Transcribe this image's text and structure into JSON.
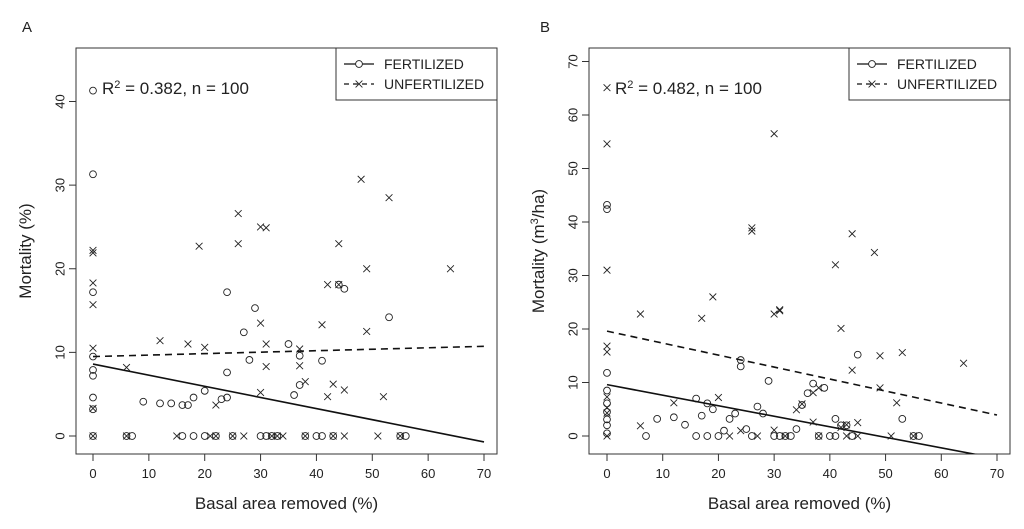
{
  "chart_data": [
    {
      "panel_label": "A",
      "type": "scatter",
      "xlabel": "Basal area removed (%)",
      "ylabel": "Mortality (%)",
      "ylabel_sup": "",
      "ylabel_suffix": "",
      "xlim": [
        0,
        70
      ],
      "ylim": [
        0,
        40
      ],
      "xticks": [
        0,
        10,
        20,
        30,
        40,
        50,
        60,
        70
      ],
      "yticks": [
        0,
        10,
        20,
        30,
        40
      ],
      "grid": false,
      "legend_position": "top-right",
      "annotation": {
        "lead": "R",
        "sup": "2",
        "rest": " = 0.382, n = 100"
      },
      "series": [
        {
          "name": "FERTILIZED",
          "marker": "circle",
          "line_style": "solid",
          "fit": {
            "intercept": 8.6,
            "slope": -0.133
          },
          "points": [
            [
              0,
              41.3
            ],
            [
              0,
              31.3
            ],
            [
              0,
              17.2
            ],
            [
              0,
              9.5
            ],
            [
              0,
              7.9
            ],
            [
              0,
              7.2
            ],
            [
              0,
              4.6
            ],
            [
              0,
              3.2
            ],
            [
              0,
              0
            ],
            [
              6,
              0
            ],
            [
              7,
              0
            ],
            [
              9,
              4.1
            ],
            [
              12,
              3.9
            ],
            [
              14,
              3.9
            ],
            [
              16,
              3.7
            ],
            [
              16,
              0
            ],
            [
              17,
              3.7
            ],
            [
              18,
              0
            ],
            [
              18,
              4.6
            ],
            [
              20,
              5.4
            ],
            [
              20,
              0
            ],
            [
              22,
              0
            ],
            [
              23,
              4.4
            ],
            [
              24,
              17.2
            ],
            [
              24,
              7.6
            ],
            [
              24,
              4.6
            ],
            [
              25,
              0
            ],
            [
              27,
              12.4
            ],
            [
              28,
              9.1
            ],
            [
              29,
              15.3
            ],
            [
              30,
              0
            ],
            [
              31,
              0
            ],
            [
              32,
              0
            ],
            [
              33,
              0
            ],
            [
              35,
              11.0
            ],
            [
              36,
              4.9
            ],
            [
              37,
              6.1
            ],
            [
              37,
              9.6
            ],
            [
              38,
              0
            ],
            [
              40,
              0
            ],
            [
              41,
              9.0
            ],
            [
              41,
              0
            ],
            [
              43,
              0
            ],
            [
              44,
              18.1
            ],
            [
              45,
              17.6
            ],
            [
              53,
              14.2
            ],
            [
              55,
              0
            ],
            [
              56,
              0
            ]
          ]
        },
        {
          "name": "UNFERTILIZED",
          "marker": "x",
          "line_style": "dashed",
          "fit": {
            "intercept": 9.5,
            "slope": 0.0175
          },
          "points": [
            [
              0,
              22.2
            ],
            [
              0,
              21.9
            ],
            [
              0,
              18.3
            ],
            [
              0,
              15.7
            ],
            [
              0,
              10.5
            ],
            [
              0,
              3.3
            ],
            [
              0,
              0
            ],
            [
              6,
              8.2
            ],
            [
              6,
              0
            ],
            [
              12,
              11.4
            ],
            [
              15,
              0
            ],
            [
              17,
              11.0
            ],
            [
              19,
              22.7
            ],
            [
              20,
              10.6
            ],
            [
              21,
              0
            ],
            [
              22,
              3.7
            ],
            [
              22,
              0
            ],
            [
              25,
              0
            ],
            [
              26,
              26.6
            ],
            [
              26,
              23.0
            ],
            [
              27,
              0
            ],
            [
              30,
              25.0
            ],
            [
              30,
              13.5
            ],
            [
              30,
              5.2
            ],
            [
              31,
              24.9
            ],
            [
              31,
              11.0
            ],
            [
              31,
              8.3
            ],
            [
              32,
              0
            ],
            [
              33,
              0
            ],
            [
              34,
              0
            ],
            [
              37,
              10.4
            ],
            [
              37,
              8.4
            ],
            [
              38,
              6.5
            ],
            [
              38,
              0
            ],
            [
              41,
              13.3
            ],
            [
              42,
              18.1
            ],
            [
              42,
              4.7
            ],
            [
              43,
              6.2
            ],
            [
              43,
              0
            ],
            [
              44,
              23.0
            ],
            [
              44,
              18.1
            ],
            [
              45,
              5.5
            ],
            [
              45,
              0
            ],
            [
              48,
              30.7
            ],
            [
              49,
              20.0
            ],
            [
              49,
              12.5
            ],
            [
              51,
              0
            ],
            [
              52,
              4.7
            ],
            [
              53,
              28.5
            ],
            [
              55,
              0
            ],
            [
              64,
              20.0
            ]
          ]
        }
      ]
    },
    {
      "panel_label": "B",
      "type": "scatter",
      "xlabel": "Basal area removed (%)",
      "ylabel": "Mortality (m",
      "ylabel_sup": "3",
      "ylabel_suffix": "/ha)",
      "xlim": [
        0,
        70
      ],
      "ylim": [
        0,
        70
      ],
      "xticks": [
        0,
        10,
        20,
        30,
        40,
        50,
        60,
        70
      ],
      "yticks": [
        0,
        10,
        20,
        30,
        40,
        50,
        60,
        70
      ],
      "grid": false,
      "legend_position": "top-right",
      "annotation": {
        "lead": "R",
        "sup": "2",
        "rest": " = 0.482, n = 100"
      },
      "series": [
        {
          "name": "FERTILIZED",
          "marker": "circle",
          "line_style": "solid",
          "fit": {
            "intercept": 9.6,
            "slope": -0.197
          },
          "points": [
            [
              0,
              43.2
            ],
            [
              0,
              42.4
            ],
            [
              0,
              11.8
            ],
            [
              0,
              8.5
            ],
            [
              0,
              6.1
            ],
            [
              0,
              4.5
            ],
            [
              0,
              3.1
            ],
            [
              0,
              2.0
            ],
            [
              0,
              0.5
            ],
            [
              7,
              0
            ],
            [
              9,
              3.2
            ],
            [
              12,
              3.5
            ],
            [
              14,
              2.1
            ],
            [
              16,
              7.0
            ],
            [
              16,
              0
            ],
            [
              17,
              3.8
            ],
            [
              18,
              0
            ],
            [
              18,
              6.1
            ],
            [
              19,
              5.0
            ],
            [
              20,
              0
            ],
            [
              21,
              1.0
            ],
            [
              22,
              3.2
            ],
            [
              23,
              4.2
            ],
            [
              24,
              14.2
            ],
            [
              24,
              13.0
            ],
            [
              25,
              1.3
            ],
            [
              26,
              0
            ],
            [
              27,
              5.5
            ],
            [
              28,
              4.2
            ],
            [
              29,
              10.3
            ],
            [
              30,
              0
            ],
            [
              31,
              0
            ],
            [
              32,
              0
            ],
            [
              33,
              0
            ],
            [
              34,
              1.3
            ],
            [
              35,
              5.8
            ],
            [
              36,
              8.0
            ],
            [
              37,
              9.8
            ],
            [
              38,
              0
            ],
            [
              39,
              9.0
            ],
            [
              40,
              0
            ],
            [
              41,
              0
            ],
            [
              41,
              3.2
            ],
            [
              42,
              2.0
            ],
            [
              43,
              2.0
            ],
            [
              44,
              0
            ],
            [
              45,
              15.2
            ],
            [
              53,
              3.2
            ],
            [
              55,
              0
            ],
            [
              56,
              0
            ]
          ]
        },
        {
          "name": "UNFERTILIZED",
          "marker": "x",
          "line_style": "dashed",
          "fit": {
            "intercept": 19.6,
            "slope": -0.224
          },
          "points": [
            [
              0,
              65.1
            ],
            [
              0,
              54.6
            ],
            [
              0,
              31.0
            ],
            [
              0,
              16.8
            ],
            [
              0,
              15.7
            ],
            [
              0,
              7.3
            ],
            [
              0,
              5.3
            ],
            [
              0,
              4.3
            ],
            [
              0,
              0
            ],
            [
              6,
              22.8
            ],
            [
              6,
              1.9
            ],
            [
              12,
              6.2
            ],
            [
              17,
              22.0
            ],
            [
              19,
              26.0
            ],
            [
              20,
              7.2
            ],
            [
              22,
              0
            ],
            [
              24,
              1.0
            ],
            [
              26,
              38.9
            ],
            [
              26,
              38.3
            ],
            [
              27,
              0
            ],
            [
              30,
              56.5
            ],
            [
              30,
              22.8
            ],
            [
              30,
              1.1
            ],
            [
              31,
              23.6
            ],
            [
              31,
              23.4
            ],
            [
              32,
              0
            ],
            [
              34,
              4.9
            ],
            [
              35,
              6.0
            ],
            [
              37,
              2.6
            ],
            [
              37,
              8.1
            ],
            [
              38,
              0
            ],
            [
              38,
              9.0
            ],
            [
              41,
              32.0
            ],
            [
              42,
              20.1
            ],
            [
              42,
              1.6
            ],
            [
              43,
              2.1
            ],
            [
              43,
              0
            ],
            [
              44,
              37.8
            ],
            [
              44,
              12.3
            ],
            [
              45,
              2.5
            ],
            [
              45,
              0
            ],
            [
              48,
              34.3
            ],
            [
              49,
              15.0
            ],
            [
              49,
              9.0
            ],
            [
              51,
              0
            ],
            [
              52,
              6.2
            ],
            [
              53,
              15.6
            ],
            [
              55,
              0
            ],
            [
              64,
              13.6
            ]
          ]
        }
      ]
    }
  ]
}
